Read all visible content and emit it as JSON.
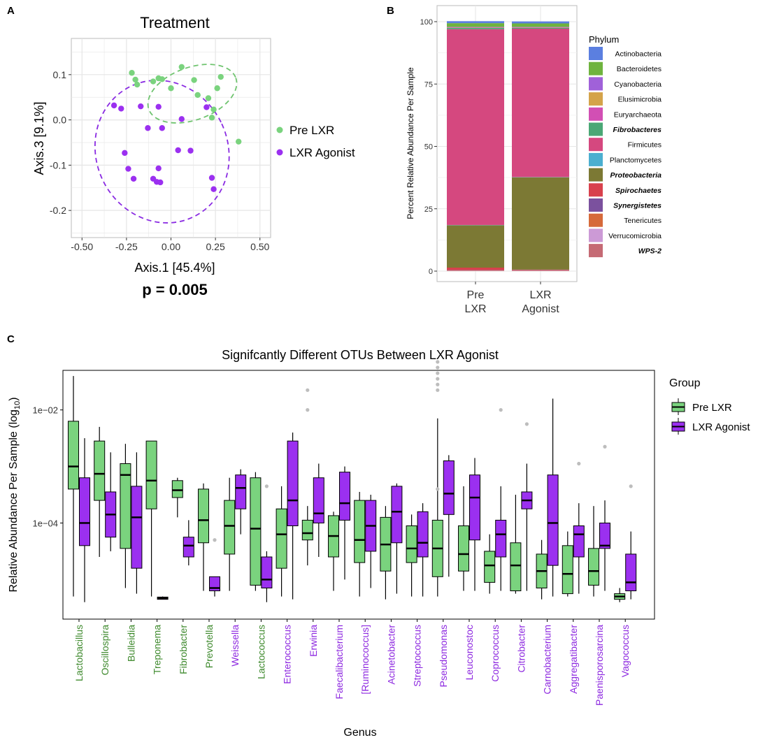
{
  "colors": {
    "pre": "#7ad37e",
    "pre_ellipse": "#6fc46f",
    "agonist": "#9b30f0",
    "agonist_ellipse": "#8a2be2",
    "panel_bg": "#ffffff",
    "grid": "#e6e6e6",
    "green_label": "#3f8a2e",
    "purple_label": "#8e2ae0",
    "outlier": "#bdbdbd"
  },
  "panels": {
    "a": {
      "letter": "A"
    },
    "b": {
      "letter": "B"
    },
    "c": {
      "letter": "C"
    }
  },
  "chart_data": [
    {
      "id": "A",
      "type": "scatter",
      "title": "Treatment",
      "xlabel": "Axis.1   [45.4%]",
      "ylabel": "Axis.3   [9.1%]",
      "xlim": [
        -0.56,
        0.56
      ],
      "ylim": [
        -0.26,
        0.18
      ],
      "xticks": [
        -0.5,
        -0.25,
        0.0,
        0.25,
        0.5
      ],
      "xtick_labels": [
        "-0.50",
        "-0.25",
        "0.00",
        "0.25",
        "0.50"
      ],
      "yticks": [
        -0.2,
        -0.1,
        0.0,
        0.1
      ],
      "ytick_labels": [
        "-0.2",
        "-0.1",
        "0.0",
        "0.1"
      ],
      "annotation": "p = 0.005",
      "legend": [
        {
          "name": "Pre LXR",
          "color": "#7ad37e"
        },
        {
          "name": "LXR Agonist",
          "color": "#9b30f0"
        }
      ],
      "series": [
        {
          "name": "Pre LXR",
          "points": [
            [
              -0.22,
              0.104
            ],
            [
              -0.2,
              0.089
            ],
            [
              -0.19,
              0.078
            ],
            [
              -0.1,
              0.085
            ],
            [
              -0.07,
              0.092
            ],
            [
              -0.05,
              0.09
            ],
            [
              0.0,
              0.07
            ],
            [
              0.06,
              0.117
            ],
            [
              0.15,
              0.055
            ],
            [
              0.13,
              0.088
            ],
            [
              0.21,
              0.048
            ],
            [
              0.24,
              0.023
            ],
            [
              0.23,
              0.005
            ],
            [
              0.26,
              0.07
            ],
            [
              0.28,
              0.095
            ],
            [
              0.38,
              -0.048
            ]
          ]
        },
        {
          "name": "LXR Agonist",
          "points": [
            [
              -0.32,
              0.032
            ],
            [
              -0.28,
              0.025
            ],
            [
              -0.17,
              0.03
            ],
            [
              -0.07,
              0.029
            ],
            [
              0.06,
              0.002
            ],
            [
              0.2,
              0.028
            ],
            [
              -0.13,
              -0.018
            ],
            [
              -0.05,
              -0.018
            ],
            [
              -0.26,
              -0.073
            ],
            [
              -0.24,
              -0.108
            ],
            [
              -0.07,
              -0.107
            ],
            [
              -0.21,
              -0.13
            ],
            [
              -0.1,
              -0.13
            ],
            [
              -0.06,
              -0.138
            ],
            [
              -0.08,
              -0.137
            ],
            [
              0.04,
              -0.067
            ],
            [
              0.11,
              -0.068
            ],
            [
              0.23,
              -0.128
            ],
            [
              0.24,
              -0.153
            ]
          ]
        }
      ],
      "ellipses": [
        {
          "group": "Pre LXR",
          "cx": 0.12,
          "cy": 0.058,
          "rx": 0.26,
          "ry": 0.058,
          "angle_deg": -20
        },
        {
          "group": "LXR Agonist",
          "cx": -0.05,
          "cy": -0.07,
          "rx": 0.37,
          "ry": 0.16,
          "angle_deg": -25
        }
      ]
    },
    {
      "id": "B",
      "type": "bar",
      "stacked": true,
      "categories": [
        "Pre\nLXR",
        "LXR\nAgonist"
      ],
      "category_lines": [
        [
          "Pre",
          "LXR"
        ],
        [
          "LXR",
          "Agonist"
        ]
      ],
      "ylabel": "Percent Relative Abundance Per Sample",
      "ylim": [
        0,
        100
      ],
      "yticks": [
        0,
        25,
        50,
        75,
        100
      ],
      "ytick_labels": [
        "0",
        "25",
        "50",
        "75",
        "100"
      ],
      "legend_title": "Phylum",
      "series": [
        {
          "name": "Actinobacteria",
          "color": "#5b7fe0",
          "italic": false,
          "values": [
            0.8,
            0.8
          ]
        },
        {
          "name": "Bacteroidetes",
          "color": "#6fb33e",
          "italic": false,
          "values": [
            1.5,
            1.4
          ]
        },
        {
          "name": "Cyanobacteria",
          "color": "#a061d9",
          "italic": false,
          "values": [
            0.1,
            0.1
          ]
        },
        {
          "name": "Elusimicrobia",
          "color": "#d4a34a",
          "italic": false,
          "values": [
            0.1,
            0.1
          ]
        },
        {
          "name": "Euryarchaeota",
          "color": "#d24fb4",
          "italic": false,
          "values": [
            0.2,
            0.2
          ]
        },
        {
          "name": "Fibrobacteres",
          "color": "#4aa775",
          "italic": true,
          "values": [
            0.5,
            0.3
          ]
        },
        {
          "name": "Firmicutes",
          "color": "#d5487f",
          "italic": false,
          "values": [
            78.5,
            59.5
          ]
        },
        {
          "name": "Planctomycetes",
          "color": "#4bafd0",
          "italic": false,
          "values": [
            0.1,
            0.1
          ]
        },
        {
          "name": "Proteobacteria",
          "color": "#7c7934",
          "italic": true,
          "values": [
            17.0,
            37.0
          ]
        },
        {
          "name": "Spirochaetes",
          "color": "#d8414d",
          "italic": true,
          "values": [
            1.0,
            0.2
          ]
        },
        {
          "name": "Synergistetes",
          "color": "#7b519e",
          "italic": true,
          "values": [
            0.1,
            0.1
          ]
        },
        {
          "name": "Tenericutes",
          "color": "#d66a3a",
          "italic": false,
          "values": [
            0.1,
            0.1
          ]
        },
        {
          "name": "Verrucomicrobia",
          "color": "#cc9ad6",
          "italic": false,
          "values": [
            0.1,
            0.1
          ]
        },
        {
          "name": "WPS-2",
          "color": "#c56a74",
          "italic": true,
          "values": [
            0.1,
            0.1
          ]
        }
      ]
    },
    {
      "id": "C",
      "type": "box",
      "title": "Signifcantly Different OTUs Between LXR Agonist",
      "xlabel": "Genus",
      "ylabel_main": "Relative Abundance Per Sample (log",
      "ylabel_sub": "10",
      "ylabel_end": ")",
      "yscale": "log10",
      "ylim_log10": [
        -5.7,
        -1.3
      ],
      "yticks_log10": [
        -4,
        -2
      ],
      "ytick_labels": [
        "1e−04",
        "1e−02"
      ],
      "legend_title": "Group",
      "legend": [
        {
          "name": "Pre LXR",
          "color": "#7ad37e"
        },
        {
          "name": "LXR Agonist",
          "color": "#9b30f0"
        }
      ],
      "genera": [
        {
          "name": "Lactobacillus",
          "label_color": "green",
          "pre": [
            -5.3,
            -3.4,
            -3.0,
            -2.2,
            -1.4,
            []
          ],
          "agonist": [
            -5.4,
            -4.4,
            -4.0,
            -3.2,
            -2.5,
            []
          ]
        },
        {
          "name": "Oscillospira",
          "label_color": "green",
          "pre": [
            -4.6,
            -3.6,
            -3.13,
            -2.55,
            -2.3,
            []
          ],
          "agonist": [
            -4.5,
            -4.25,
            -3.85,
            -3.45,
            -2.75,
            []
          ]
        },
        {
          "name": "Bulleidia",
          "label_color": "green",
          "pre": [
            -5.15,
            -4.45,
            -3.15,
            -2.95,
            -2.6,
            []
          ],
          "agonist": [
            -5.25,
            -4.8,
            -3.9,
            -3.35,
            -2.75,
            []
          ]
        },
        {
          "name": "Treponema",
          "label_color": "green",
          "pre": [
            -5.3,
            -3.75,
            -3.25,
            -2.55,
            -2.6,
            []
          ],
          "agonist": [
            -5.35,
            -5.35,
            -5.33,
            -5.31,
            -5.3,
            []
          ]
        },
        {
          "name": "Fibrobacter",
          "label_color": "green",
          "pre": [
            -3.9,
            -3.55,
            -3.42,
            -3.25,
            -3.2,
            []
          ],
          "agonist": [
            -4.75,
            -4.6,
            -4.4,
            -4.25,
            -3.95,
            []
          ]
        },
        {
          "name": "Prevotella",
          "label_color": "green",
          "pre": [
            -5.2,
            -4.35,
            -3.95,
            -3.4,
            -3.3,
            []
          ],
          "agonist": [
            -5.3,
            -5.2,
            -5.15,
            -4.95,
            -4.95,
            [
              -4.3
            ]
          ]
        },
        {
          "name": "Weissella",
          "label_color": "purple",
          "pre": [
            -5.2,
            -4.55,
            -4.05,
            -3.6,
            -3.2,
            []
          ],
          "agonist": [
            -4.2,
            -3.75,
            -3.38,
            -3.15,
            -3.05,
            []
          ]
        },
        {
          "name": "Lactococcus",
          "label_color": "green",
          "pre": [
            -5.2,
            -5.1,
            -4.1,
            -3.2,
            -3.1,
            []
          ],
          "agonist": [
            -5.4,
            -5.15,
            -5.0,
            -4.6,
            -4.5,
            [
              -3.35
            ]
          ]
        },
        {
          "name": "Enterococcus",
          "label_color": "purple",
          "pre": [
            -5.3,
            -4.8,
            -4.2,
            -3.75,
            -3.35,
            []
          ],
          "agonist": [
            -5.35,
            -4.05,
            -3.6,
            -2.55,
            -2.4,
            []
          ]
        },
        {
          "name": "Erwinia",
          "label_color": "purple",
          "pre": [
            -4.75,
            -4.3,
            -4.18,
            -3.95,
            -3.7,
            [
              -2.0,
              -1.65
            ]
          ],
          "agonist": [
            -4.6,
            -4.0,
            -3.83,
            -3.2,
            -2.95,
            []
          ]
        },
        {
          "name": "Faecalibacterium",
          "label_color": "purple",
          "pre": [
            -5.2,
            -4.6,
            -4.23,
            -3.87,
            -3.8,
            []
          ],
          "agonist": [
            -5.0,
            -3.95,
            -3.65,
            -3.1,
            -3.0,
            []
          ]
        },
        {
          "name": "[Ruminococcus]",
          "label_color": "purple",
          "pre": [
            -5.3,
            -4.7,
            -4.3,
            -3.6,
            -3.45,
            []
          ],
          "agonist": [
            -5.15,
            -4.5,
            -4.05,
            -3.6,
            -3.5,
            []
          ]
        },
        {
          "name": "Acinetobacter",
          "label_color": "purple",
          "pre": [
            -5.35,
            -4.85,
            -4.38,
            -3.9,
            -3.7,
            []
          ],
          "agonist": [
            -5.25,
            -4.35,
            -3.8,
            -3.35,
            -3.3,
            []
          ]
        },
        {
          "name": "Streptococcus",
          "label_color": "purple",
          "pre": [
            -5.3,
            -4.7,
            -4.45,
            -4.05,
            -3.85,
            []
          ],
          "agonist": [
            -5.3,
            -4.6,
            -4.35,
            -3.8,
            -3.65,
            []
          ]
        },
        {
          "name": "Pseudomonas",
          "label_color": "purple",
          "pre": [
            -5.3,
            -4.95,
            -4.45,
            -3.95,
            -2.15,
            [
              -3.4,
              -1.65,
              -1.55,
              -1.45,
              -1.35,
              -1.25,
              -1.15
            ]
          ],
          "agonist": [
            -4.95,
            -3.85,
            -3.48,
            -2.9,
            -2.8,
            []
          ]
        },
        {
          "name": "Leuconostoc",
          "label_color": "purple",
          "pre": [
            -5.2,
            -4.85,
            -4.55,
            -4.05,
            -3.35,
            []
          ],
          "agonist": [
            -5.2,
            -4.3,
            -3.55,
            -3.15,
            -2.85,
            []
          ]
        },
        {
          "name": "Coprococcus",
          "label_color": "purple",
          "pre": [
            -5.25,
            -5.05,
            -4.75,
            -4.5,
            -4.2,
            []
          ],
          "agonist": [
            -5.2,
            -4.6,
            -4.2,
            -3.95,
            -3.35,
            [
              -2.0
            ]
          ]
        },
        {
          "name": "Citrobacter",
          "label_color": "purple",
          "pre": [
            -5.25,
            -5.2,
            -4.75,
            -4.35,
            -3.5,
            []
          ],
          "agonist": [
            -5.2,
            -3.75,
            -3.6,
            -3.45,
            -2.95,
            [
              -2.25
            ]
          ]
        },
        {
          "name": "Carnobacterium",
          "label_color": "purple",
          "pre": [
            -5.35,
            -5.15,
            -4.85,
            -4.55,
            -4.3,
            []
          ],
          "agonist": [
            -5.3,
            -4.75,
            -4.0,
            -3.15,
            -1.8,
            []
          ]
        },
        {
          "name": "Aggregatibacter",
          "label_color": "purple",
          "pre": [
            -5.3,
            -5.25,
            -4.9,
            -4.4,
            -4.15,
            []
          ],
          "agonist": [
            -5.25,
            -4.6,
            -4.2,
            -4.05,
            -3.65,
            [
              -2.95
            ]
          ]
        },
        {
          "name": "Paenisporosarcina",
          "label_color": "purple",
          "pre": [
            -5.3,
            -5.1,
            -4.85,
            -4.45,
            -3.7,
            []
          ],
          "agonist": [
            -5.2,
            -4.45,
            -4.4,
            -4.0,
            -3.6,
            [
              -2.65
            ]
          ]
        },
        {
          "name": "Vagococcus",
          "label_color": "purple",
          "pre": [
            -5.4,
            -5.35,
            -5.3,
            -5.25,
            -5.15,
            []
          ],
          "agonist": [
            -5.35,
            -5.2,
            -5.05,
            -4.55,
            -4.15,
            [
              -3.35
            ]
          ]
        }
      ]
    }
  ]
}
